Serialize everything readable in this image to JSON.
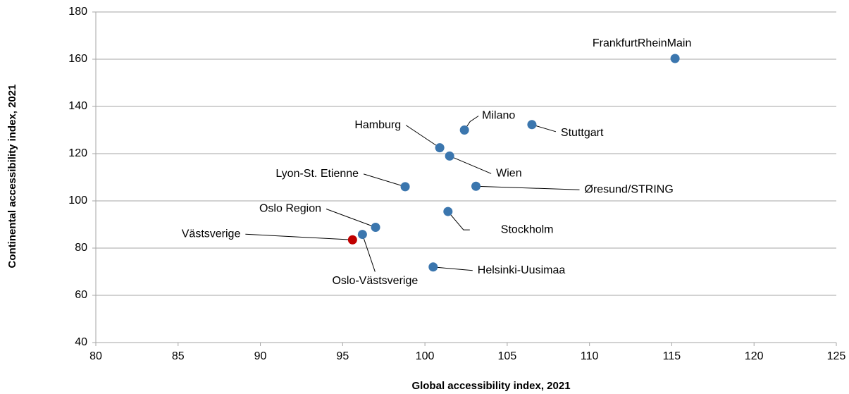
{
  "chart_data": {
    "type": "scatter",
    "xlabel": "Global accessibility index, 2021",
    "ylabel": "Continental accessibility index, 2021",
    "xlim": [
      80,
      125
    ],
    "xticks": [
      80,
      85,
      90,
      95,
      100,
      105,
      110,
      115,
      120,
      125
    ],
    "ylim": [
      40,
      180
    ],
    "yticks": [
      40,
      60,
      80,
      100,
      120,
      140,
      160,
      180
    ],
    "grid": true,
    "points": [
      {
        "label": "FrankfurtRheinMain",
        "x": 115.2,
        "y": 160.3,
        "color": "#3b76ae"
      },
      {
        "label": "Milano",
        "x": 102.4,
        "y": 130,
        "color": "#3b76ae"
      },
      {
        "label": "Stuttgart",
        "x": 106.5,
        "y": 132.3,
        "color": "#3b76ae"
      },
      {
        "label": "Hamburg",
        "x": 100.9,
        "y": 122.5,
        "color": "#3b76ae"
      },
      {
        "label": "Wien",
        "x": 101.5,
        "y": 119,
        "color": "#3b76ae"
      },
      {
        "label": "Lyon-St. Etienne",
        "x": 98.8,
        "y": 106,
        "color": "#3b76ae"
      },
      {
        "label": "Øresund/STRING",
        "x": 103.1,
        "y": 106.2,
        "color": "#3b76ae"
      },
      {
        "label": "Stockholm",
        "x": 101.4,
        "y": 95.5,
        "color": "#3b76ae"
      },
      {
        "label": "Oslo Region",
        "x": 97.0,
        "y": 88.8,
        "color": "#3b76ae"
      },
      {
        "label": "Oslo-Västsverige",
        "x": 96.2,
        "y": 85.8,
        "color": "#3b76ae"
      },
      {
        "label": "Västsverige",
        "x": 95.6,
        "y": 83.5,
        "color": "#c00000"
      },
      {
        "label": "Helsinki-Uusimaa",
        "x": 100.5,
        "y": 72,
        "color": "#3b76ae"
      }
    ]
  }
}
